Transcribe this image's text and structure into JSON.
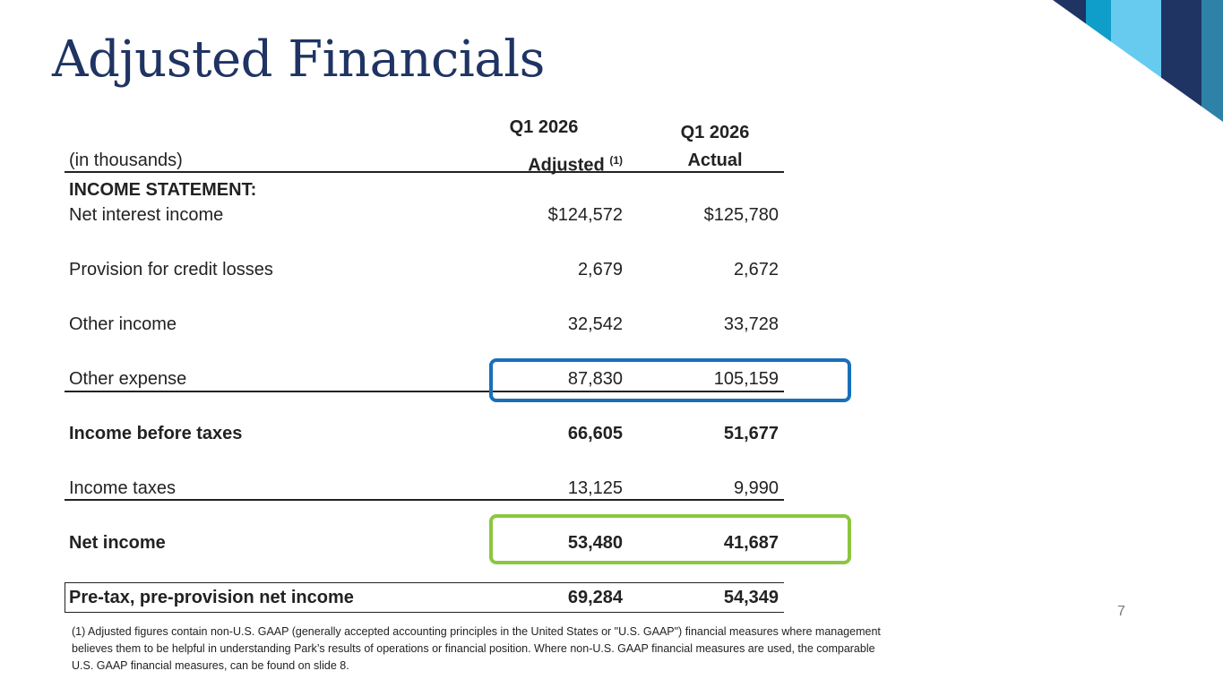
{
  "title": "Adjusted Financials",
  "colors": {
    "title": "#1f3463",
    "highlight_blue": "#1a6fba",
    "highlight_green": "#8cc63f"
  },
  "table": {
    "units": "(in thousands)",
    "col1": {
      "line1": "Q1 2026",
      "line2": "Adjusted",
      "sup": "(1)"
    },
    "col2": {
      "line1": "Q1 2026",
      "line2": "Actual"
    },
    "section": "INCOME STATEMENT:",
    "rows": [
      {
        "label": "Net interest income",
        "adjusted": "$124,572",
        "actual": "$125,780"
      },
      {
        "label": "Provision for credit losses",
        "adjusted": "2,679",
        "actual": "2,672"
      },
      {
        "label": "Other income",
        "adjusted": "32,542",
        "actual": "33,728"
      },
      {
        "label": "Other expense",
        "adjusted": "87,830",
        "actual": "105,159"
      },
      {
        "label": "Income before taxes",
        "adjusted": "66,605",
        "actual": "51,677"
      },
      {
        "label": "Income taxes",
        "adjusted": "13,125",
        "actual": "9,990"
      },
      {
        "label": "Net income",
        "adjusted": "53,480",
        "actual": "41,687"
      },
      {
        "label": "Pre-tax, pre-provision net income",
        "adjusted": "69,284",
        "actual": "54,349"
      }
    ]
  },
  "page_number": "7",
  "footnote": "(1) Adjusted figures contain non-U.S. GAAP (generally accepted accounting principles in the United States or \"U.S. GAAP\") financial measures where management believes them to be helpful in understanding Park’s results of operations or financial position. Where non-U.S. GAAP financial measures are used, the comparable U.S. GAAP financial measures, can be found on slide 8."
}
